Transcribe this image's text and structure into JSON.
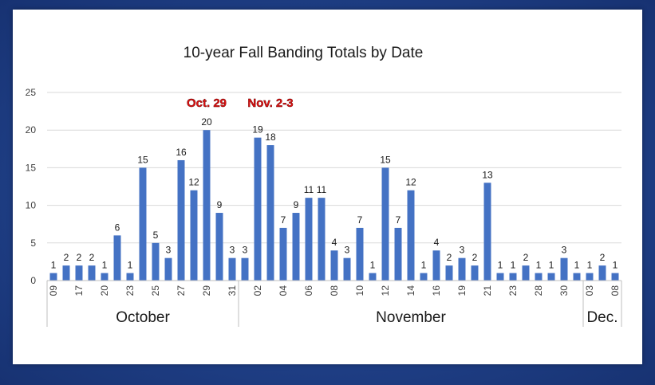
{
  "chart_data": {
    "type": "bar",
    "title": "10-year Fall Banding Totals by Date",
    "xlabel": "",
    "ylabel": "",
    "ylim": [
      0,
      25
    ],
    "yticks": [
      "0",
      "5",
      "10",
      "15",
      "20",
      "25"
    ],
    "grid": true,
    "legend": "none",
    "bar_color": "#4472c4",
    "categories": [
      "09",
      "",
      "17",
      "",
      "20",
      "",
      "23",
      "",
      "25",
      "",
      "27",
      "",
      "29",
      "",
      "31",
      "",
      "02",
      "",
      "04",
      "",
      "06",
      "",
      "08",
      "",
      "10",
      "",
      "12",
      "",
      "14",
      "",
      "16",
      "",
      "19",
      "",
      "21",
      "",
      "23",
      "",
      "28",
      "",
      "30",
      "",
      "03",
      "",
      "08"
    ],
    "values": [
      1,
      2,
      2,
      2,
      1,
      6,
      1,
      15,
      5,
      3,
      16,
      12,
      20,
      9,
      3,
      3,
      19,
      18,
      7,
      9,
      11,
      11,
      4,
      3,
      7,
      1,
      15,
      7,
      12,
      1,
      4,
      2,
      3,
      2,
      13,
      1,
      1,
      2,
      1,
      1,
      3,
      1,
      1,
      2,
      1
    ],
    "value_labels": [
      "1",
      "2",
      "2",
      "2",
      "1",
      "6",
      "1",
      "15",
      "5",
      "3",
      "16",
      "12",
      "20",
      "9",
      "3",
      "3",
      "19",
      "18",
      "7",
      "9",
      "11",
      "11",
      "4",
      "3",
      "7",
      "1",
      "15",
      "7",
      "12",
      "1",
      "4",
      "2",
      "3",
      "2",
      "13",
      "1",
      "1",
      "2",
      "1",
      "1",
      "3",
      "1",
      "1",
      "2",
      "1"
    ],
    "months": [
      {
        "label": "October",
        "start": 0,
        "end": 14
      },
      {
        "label": "November",
        "start": 15,
        "end": 41
      },
      {
        "label": "Dec.",
        "start": 42,
        "end": 44
      }
    ],
    "annotations": [
      {
        "text": "Oct. 29",
        "index": 12,
        "color": "#e01010"
      },
      {
        "text": "Nov. 2-3",
        "index": 17,
        "color": "#e01010"
      }
    ]
  }
}
